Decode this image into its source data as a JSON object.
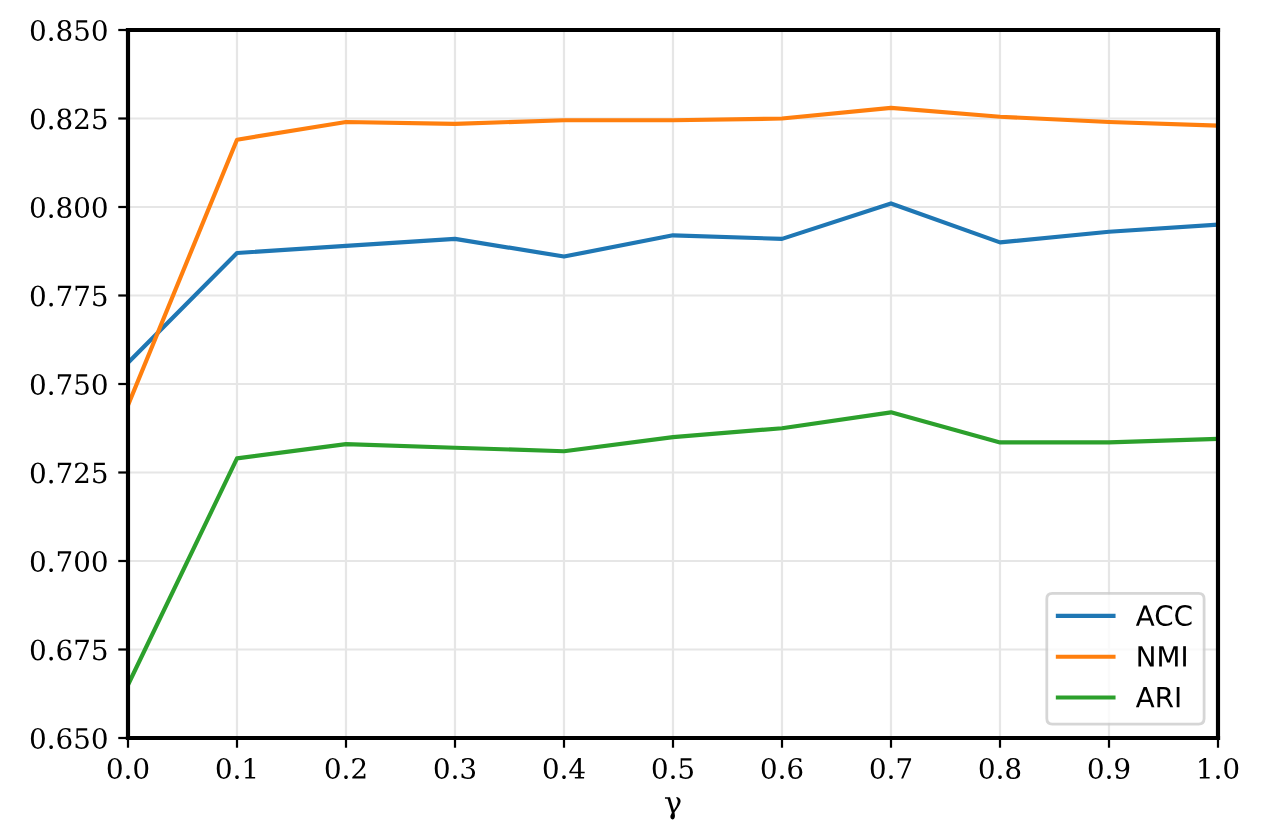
{
  "chart_data": {
    "type": "line",
    "xlabel": "γ",
    "x": [
      0.0,
      0.1,
      0.2,
      0.3,
      0.4,
      0.5,
      0.6,
      0.7,
      0.8,
      0.9,
      1.0
    ],
    "series": [
      {
        "name": "ACC",
        "color": "#1f77b4",
        "values": [
          0.756,
          0.787,
          0.789,
          0.791,
          0.786,
          0.792,
          0.791,
          0.801,
          0.79,
          0.793,
          0.795
        ]
      },
      {
        "name": "NMI",
        "color": "#ff7f0e",
        "values": [
          0.744,
          0.819,
          0.824,
          0.8235,
          0.8245,
          0.8245,
          0.825,
          0.828,
          0.8255,
          0.824,
          0.823
        ]
      },
      {
        "name": "ARI",
        "color": "#2ca02c",
        "values": [
          0.665,
          0.729,
          0.733,
          0.732,
          0.731,
          0.735,
          0.7375,
          0.742,
          0.7335,
          0.7335,
          0.7345
        ]
      }
    ],
    "xlim": [
      0.0,
      1.0
    ],
    "xticks": [
      {
        "value": 0,
        "label": "0.0"
      },
      0.1,
      0.2,
      0.3,
      0.4,
      0.5,
      0.6,
      0.7,
      0.8,
      0.9,
      {
        "value": 1,
        "label": "1.0"
      }
    ],
    "ylim": [
      0.65,
      0.85
    ],
    "yticks": [
      {
        "value": 0.65,
        "label": "0.650"
      },
      {
        "value": 0.675,
        "label": "0.675"
      },
      {
        "value": 0.7,
        "label": "0.700"
      },
      {
        "value": 0.725,
        "label": "0.725"
      },
      {
        "value": 0.75,
        "label": "0.750"
      },
      {
        "value": 0.775,
        "label": "0.775"
      },
      {
        "value": 0.8,
        "label": "0.800"
      },
      {
        "value": 0.825,
        "label": "0.825"
      },
      {
        "value": 0.85,
        "label": "0.850"
      }
    ],
    "grid": true,
    "legend": "bottom right",
    "marker": "none",
    "line_style": "solid"
  }
}
